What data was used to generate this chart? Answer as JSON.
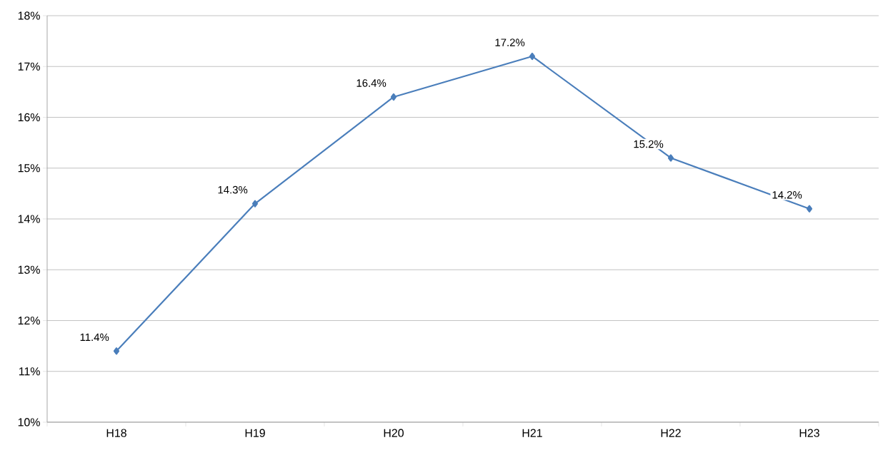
{
  "chart_data": {
    "type": "line",
    "categories": [
      "H18",
      "H19",
      "H20",
      "H21",
      "H22",
      "H23"
    ],
    "series": [
      {
        "color": "#4a7ebb",
        "values": [
          11.4,
          14.3,
          16.4,
          17.2,
          15.2,
          14.2
        ],
        "value_labels": [
          "11.4%",
          "14.3%",
          "16.4%",
          "17.2%",
          "15.2%",
          "14.2%"
        ]
      }
    ],
    "ylim": [
      10,
      18
    ],
    "yticks": [
      {
        "value": 10,
        "label": "10%"
      },
      {
        "value": 11,
        "label": "11%"
      },
      {
        "value": 12,
        "label": "12%"
      },
      {
        "value": 13,
        "label": "13%"
      },
      {
        "value": 14,
        "label": "14%"
      },
      {
        "value": 15,
        "label": "15%"
      },
      {
        "value": 16,
        "label": "16%"
      },
      {
        "value": 17,
        "label": "17%"
      },
      {
        "value": 18,
        "label": "18%"
      }
    ],
    "grid": "y",
    "marker": "diamond",
    "line_style": "solid"
  }
}
